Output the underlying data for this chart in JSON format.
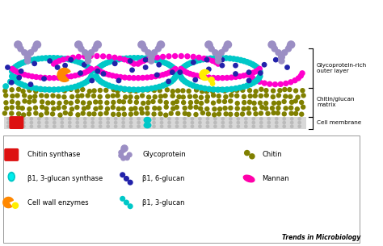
{
  "background_color": "#ffffff",
  "cell_membrane_color": "#d0d0d0",
  "chitin_glucan_color": "#808000",
  "cyan_color": "#00C8C8",
  "magenta_color": "#FF00CC",
  "navy_color": "#2222AA",
  "purple_color": "#9B8EC4",
  "red_color": "#DD1111",
  "orange_color": "#FF8800",
  "yellow_color": "#FFEE00",
  "pink_color": "#FF00AA",
  "label_glycoprotein": "Glycoprotein-rich\nouter layer",
  "label_chitin": "Chitin/glucan\nmatrix",
  "label_membrane": "Cell membrane",
  "journal_text": "Trends in Microbiology",
  "figwidth": 4.74,
  "figheight": 3.05,
  "dpi": 100
}
